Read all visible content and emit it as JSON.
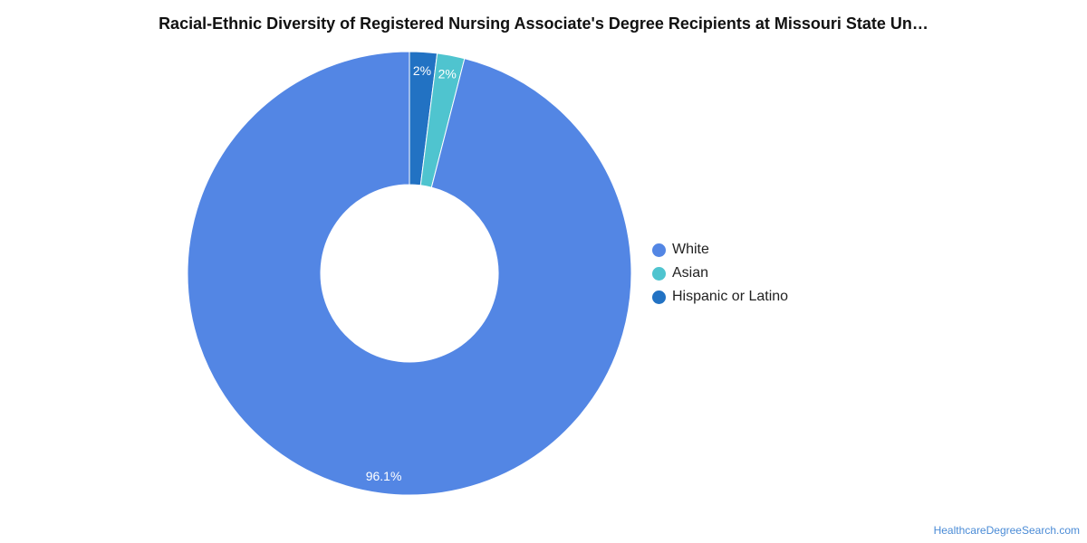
{
  "chart_data": {
    "type": "pie",
    "title": "Racial-Ethnic Diversity of Registered Nursing Associate's Degree Recipients at Missouri State Un…",
    "categories": [
      "White",
      "Asian",
      "Hispanic or Latino"
    ],
    "values": [
      96.1,
      2,
      2
    ],
    "data_labels": [
      "96.1%",
      "2%",
      "2%"
    ],
    "colors": [
      "#5386e4",
      "#4fc4cf",
      "#2272c3"
    ],
    "legend_position": "right",
    "donut": true
  },
  "footer": {
    "source": "HealthcareDegreeSearch.com"
  }
}
